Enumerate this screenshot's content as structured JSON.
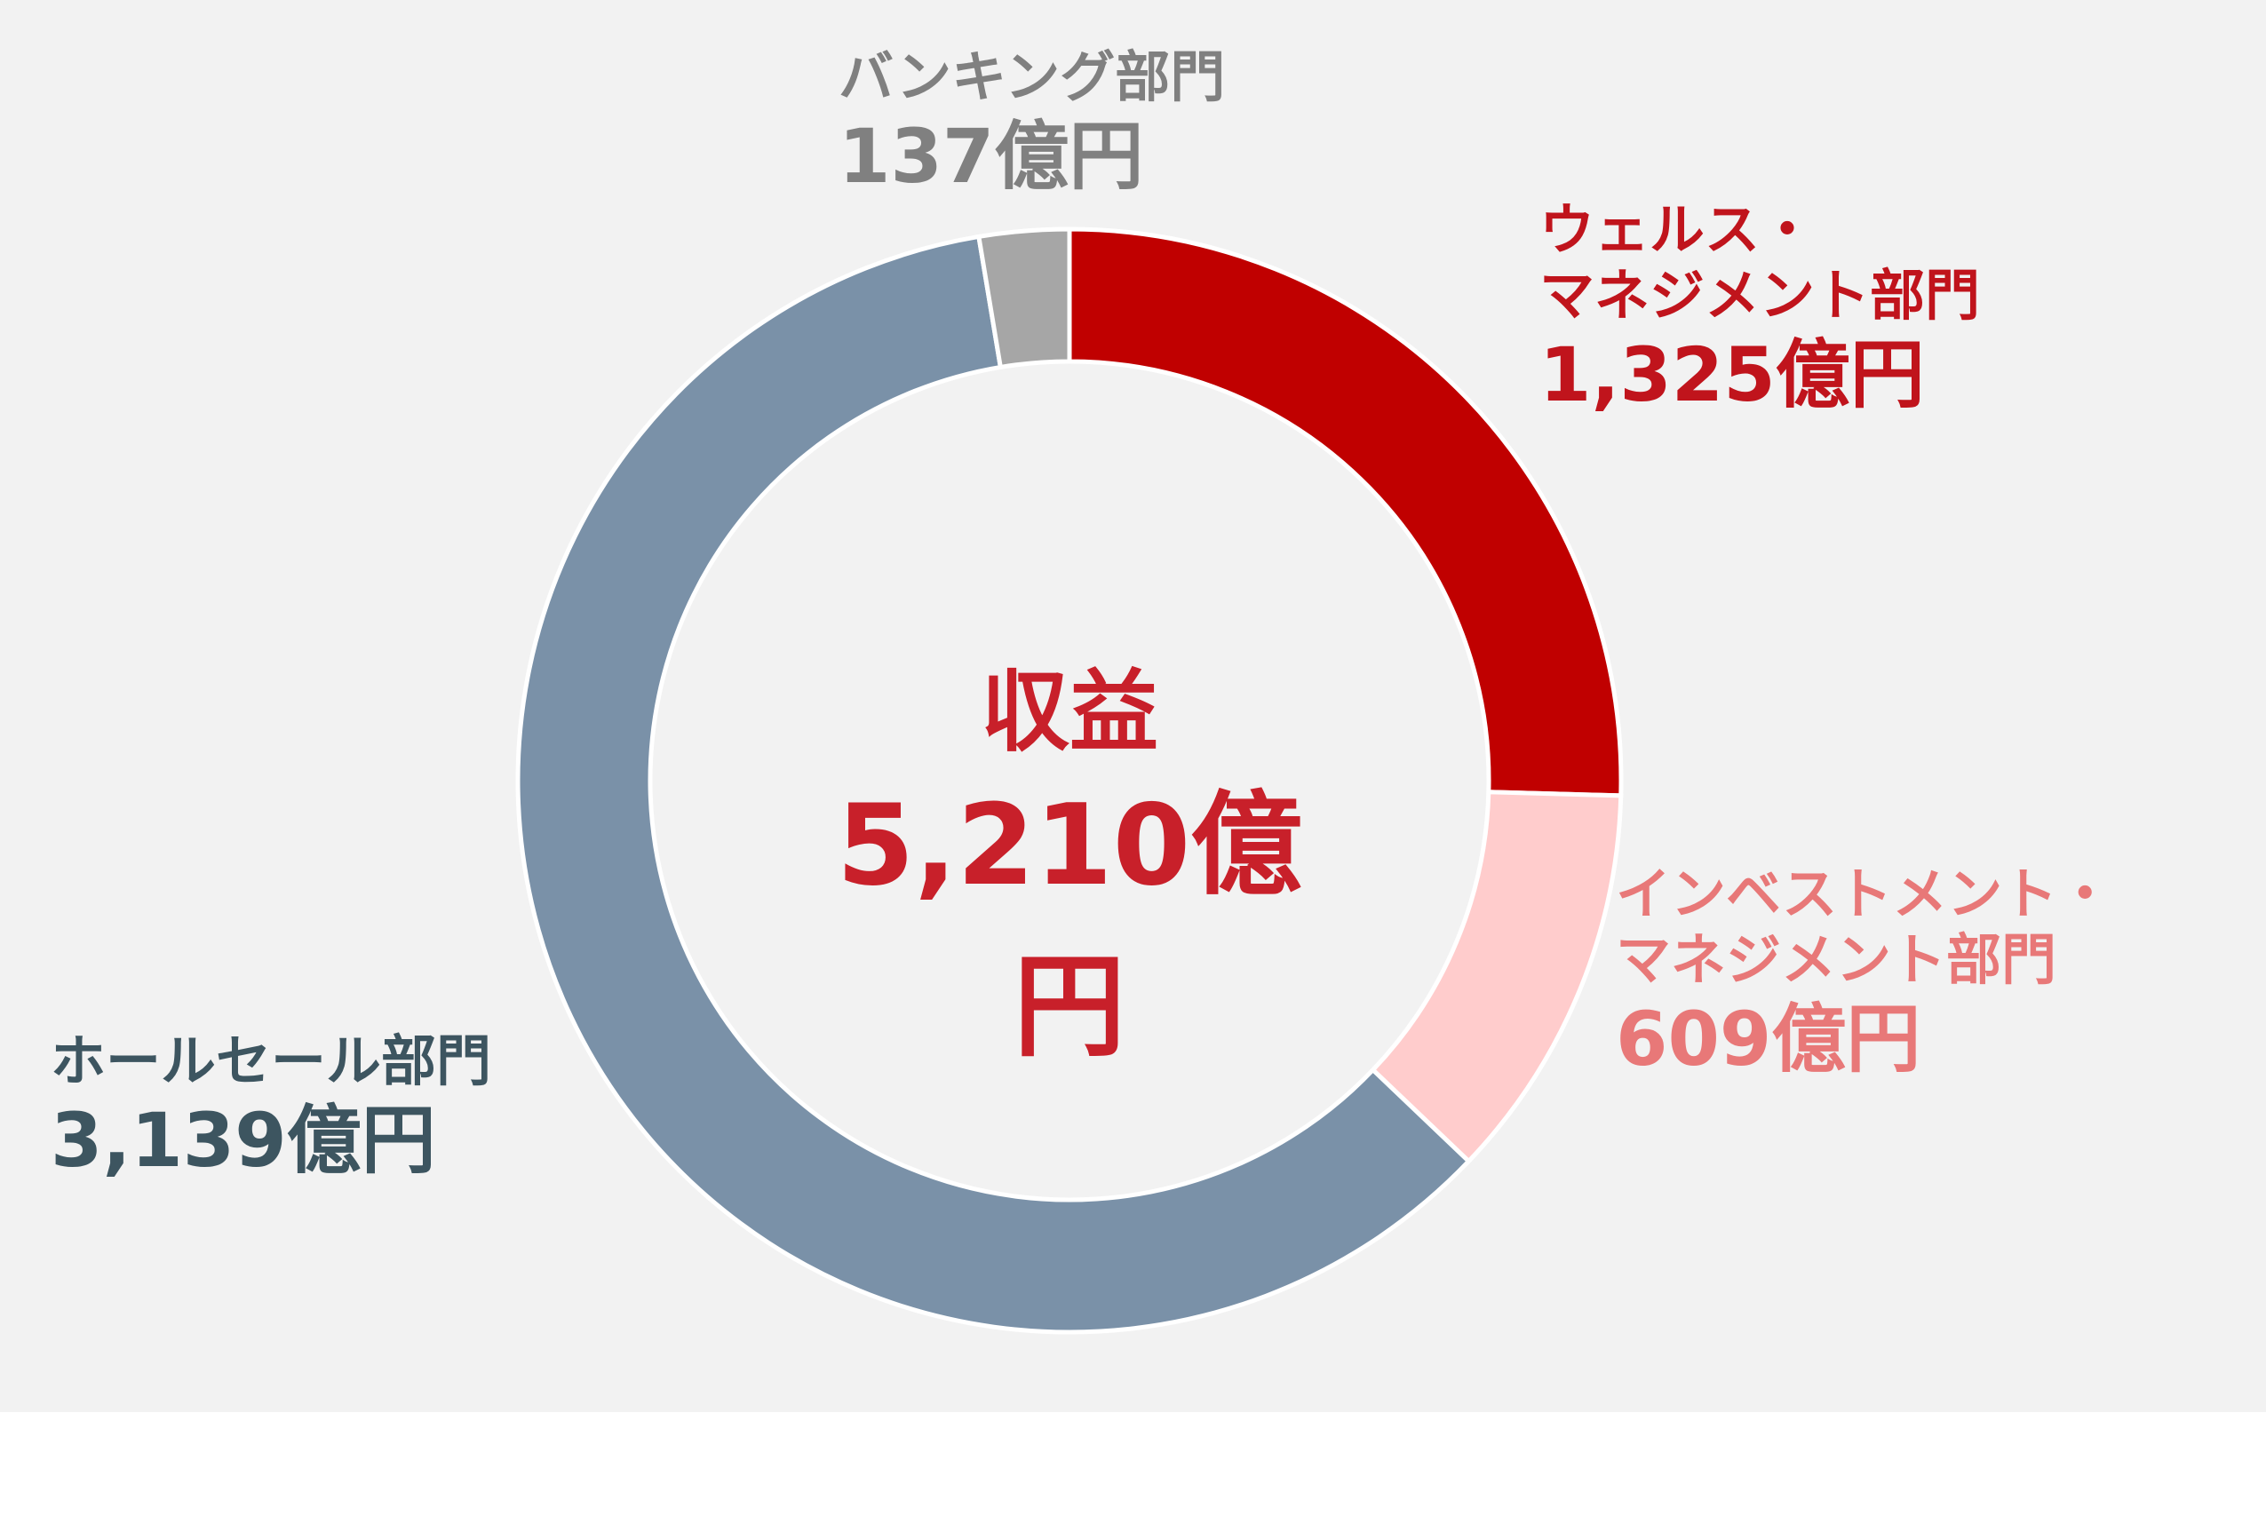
{
  "chart_data": {
    "type": "pie",
    "center_label": "収益",
    "total": {
      "value": 5210,
      "label": "5,210億円"
    },
    "categories": [
      "ウェルス・\nマネジメント部門",
      "インベストメント・\nマネジメント部門",
      "ホールセール部門",
      "バンキング部門"
    ],
    "values": [
      1325,
      609,
      3139,
      137
    ],
    "value_labels": [
      "1,325億円",
      "609億円",
      "3,139億円",
      "137億円"
    ],
    "colors": [
      "#c00000",
      "#ffcccc",
      "#7a91a8",
      "#a6a6a6"
    ],
    "label_colors": [
      "#c0141c",
      "#e87878",
      "#3d5560",
      "#808080"
    ],
    "center_color": "#c8202a"
  }
}
